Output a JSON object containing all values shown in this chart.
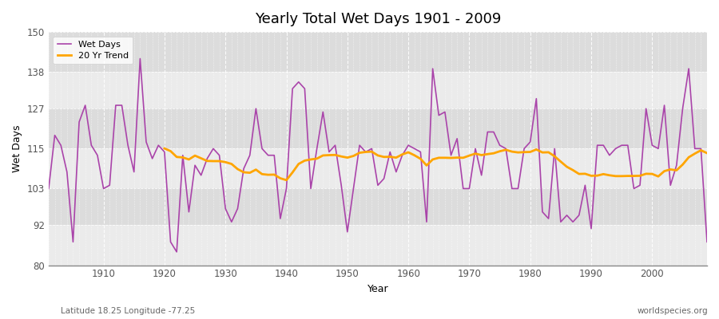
{
  "title": "Yearly Total Wet Days 1901 - 2009",
  "xlabel": "Year",
  "ylabel": "Wet Days",
  "footnote_left": "Latitude 18.25 Longitude -77.25",
  "footnote_right": "worldspecies.org",
  "ylim": [
    80,
    150
  ],
  "yticks": [
    80,
    92,
    103,
    115,
    127,
    138,
    150
  ],
  "line_color": "#AA44AA",
  "trend_color": "#FFA500",
  "bg_color": "#EBEBEB",
  "band_color1": "#EBEBEB",
  "band_color2": "#DCDCDC",
  "years": [
    1901,
    1902,
    1903,
    1904,
    1905,
    1906,
    1907,
    1908,
    1909,
    1910,
    1911,
    1912,
    1913,
    1914,
    1915,
    1916,
    1917,
    1918,
    1919,
    1920,
    1921,
    1922,
    1923,
    1924,
    1925,
    1926,
    1927,
    1928,
    1929,
    1930,
    1931,
    1932,
    1933,
    1934,
    1935,
    1936,
    1937,
    1938,
    1939,
    1940,
    1941,
    1942,
    1943,
    1944,
    1945,
    1946,
    1947,
    1948,
    1949,
    1950,
    1951,
    1952,
    1953,
    1954,
    1955,
    1956,
    1957,
    1958,
    1959,
    1960,
    1961,
    1962,
    1963,
    1964,
    1965,
    1966,
    1967,
    1968,
    1969,
    1970,
    1971,
    1972,
    1973,
    1974,
    1975,
    1976,
    1977,
    1978,
    1979,
    1980,
    1981,
    1982,
    1983,
    1984,
    1985,
    1986,
    1987,
    1988,
    1989,
    1990,
    1991,
    1992,
    1993,
    1994,
    1995,
    1996,
    1997,
    1998,
    1999,
    2000,
    2001,
    2002,
    2003,
    2004,
    2005,
    2006,
    2007,
    2008,
    2009
  ],
  "wet_days": [
    103,
    119,
    116,
    108,
    87,
    123,
    128,
    116,
    113,
    103,
    104,
    128,
    128,
    116,
    108,
    142,
    117,
    112,
    116,
    114,
    87,
    84,
    113,
    96,
    110,
    107,
    112,
    115,
    113,
    97,
    93,
    97,
    109,
    113,
    127,
    115,
    113,
    113,
    94,
    103,
    133,
    135,
    133,
    103,
    115,
    126,
    114,
    116,
    104,
    90,
    103,
    116,
    114,
    115,
    104,
    106,
    114,
    108,
    113,
    116,
    115,
    114,
    93,
    139,
    125,
    126,
    113,
    118,
    103,
    103,
    115,
    107,
    120,
    120,
    116,
    115,
    103,
    103,
    115,
    117,
    130,
    96,
    94,
    115,
    93,
    95,
    93,
    95,
    104,
    91,
    116,
    116,
    113,
    115,
    116,
    116,
    103,
    104,
    127,
    116,
    115,
    128,
    104,
    110,
    127,
    139,
    115,
    115,
    87
  ]
}
